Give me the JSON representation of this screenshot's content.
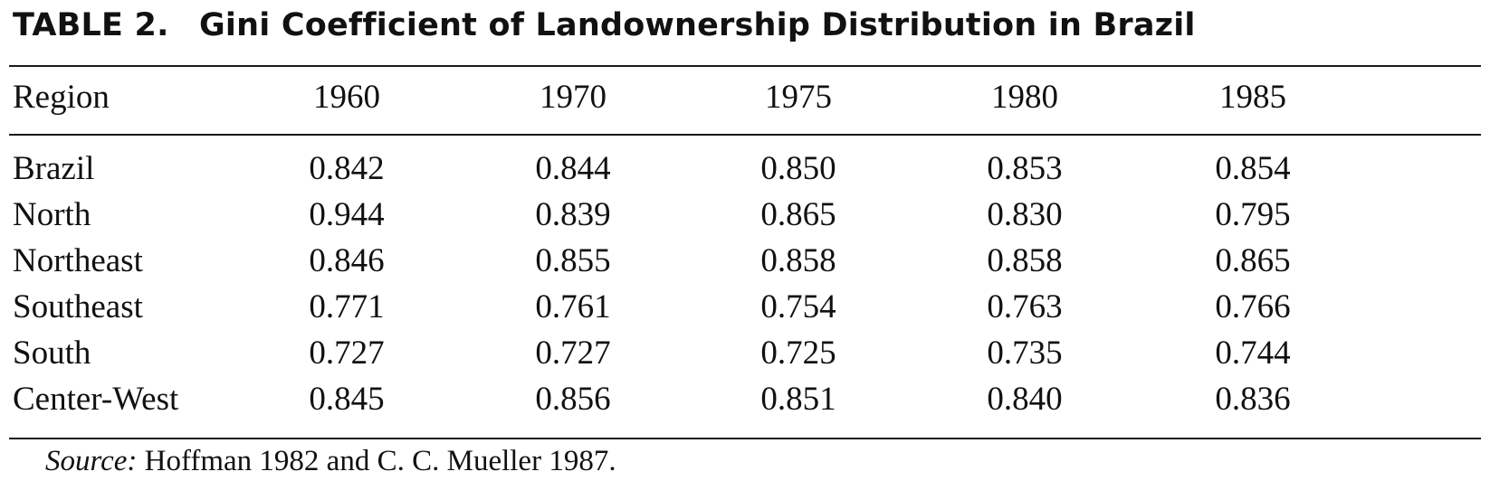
{
  "table": {
    "label": "TABLE 2.",
    "title": "Gini Coefficient of Landownership Distribution in Brazil",
    "headers": [
      "Region",
      "1960",
      "1970",
      "1975",
      "1980",
      "1985"
    ],
    "rows": [
      {
        "region": "Brazil",
        "values": [
          "0.842",
          "0.844",
          "0.850",
          "0.853",
          "0.854"
        ]
      },
      {
        "region": "North",
        "values": [
          "0.944",
          "0.839",
          "0.865",
          "0.830",
          "0.795"
        ]
      },
      {
        "region": "Northeast",
        "values": [
          "0.846",
          "0.855",
          "0.858",
          "0.858",
          "0.865"
        ]
      },
      {
        "region": "Southeast",
        "values": [
          "0.771",
          "0.761",
          "0.754",
          "0.763",
          "0.766"
        ]
      },
      {
        "region": "South",
        "values": [
          "0.727",
          "0.727",
          "0.725",
          "0.735",
          "0.744"
        ]
      },
      {
        "region": "Center-West",
        "values": [
          "0.845",
          "0.856",
          "0.851",
          "0.840",
          "0.836"
        ]
      }
    ]
  },
  "source": {
    "label": "Source:",
    "text": "Hoffman 1982 and C. C. Mueller 1987."
  }
}
